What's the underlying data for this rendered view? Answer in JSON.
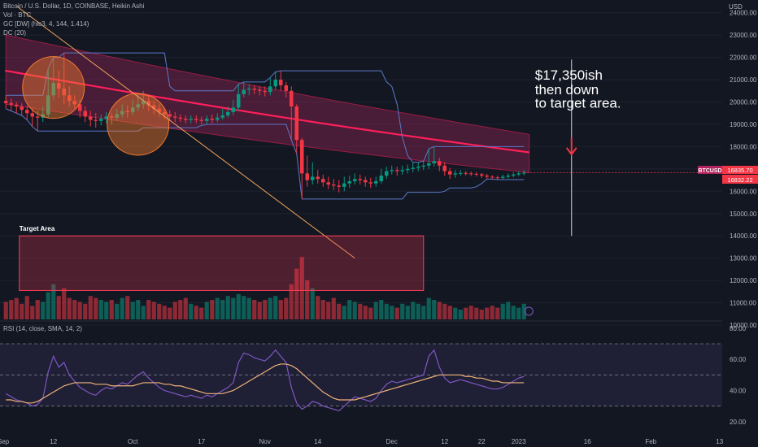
{
  "header": {
    "symbol_line": "Bitcoin / U.S. Dollar, 1D, COINBASE, Heikin Ashi",
    "vol_line": "Vol · BTC",
    "gc_line": "GC [DW] (hlc3, 4, 144, 1.414)",
    "dc_line": "DC (20)",
    "rsi_line": "RSI (14, close, SMA, 14, 2)",
    "currency": "USD"
  },
  "annotations": {
    "target_area_label": "Target Area",
    "note_line1": "$17,350ish",
    "note_line2": "then down",
    "note_line3": "to target area."
  },
  "price_tags": {
    "symbol": "BTCUSD",
    "last_price": "16835.70",
    "second_price": "16832.22"
  },
  "colors": {
    "background": "#131722",
    "up": "#089981",
    "down": "#f23645",
    "channel_fill": "#b0245e",
    "mid_line": "#ff1f5a",
    "donchian": "#5b79c8",
    "trendline": "#f0a45a",
    "target_box": "#ff3d57",
    "rsi_line": "#7e57c2",
    "rsi_sma": "#f0b27a",
    "circle_fill": "#f57c2f"
  },
  "chart_data": {
    "type": "candlestick",
    "title": "Bitcoin / U.S. Dollar, 1D, COINBASE, Heikin Ashi",
    "price_axis": {
      "ticks": [
        "24000.00",
        "23000.00",
        "22000.00",
        "21000.00",
        "20000.00",
        "19000.00",
        "18000.00",
        "17000.00",
        "16000.00",
        "15000.00",
        "14000.00",
        "13000.00",
        "12000.00",
        "11000.00",
        "10000.00"
      ],
      "range": [
        10000,
        24500
      ]
    },
    "time_axis": {
      "ticks": [
        "Sep",
        "12",
        "Oct",
        "17",
        "Nov",
        "14",
        "Dec",
        "12",
        "22",
        "2023",
        "16",
        "Feb",
        "13"
      ]
    },
    "rsi_axis": {
      "ticks": [
        "80.00",
        "60.00",
        "40.00",
        "20.00"
      ],
      "range": [
        10,
        80
      ],
      "bands": [
        70,
        50,
        30
      ]
    },
    "candles": [
      {
        "o": 20050,
        "c": 19950,
        "h": 20300,
        "l": 19700
      },
      {
        "o": 19950,
        "c": 19880,
        "h": 20150,
        "l": 19600
      },
      {
        "o": 19880,
        "c": 19800,
        "h": 20000,
        "l": 19500
      },
      {
        "o": 19800,
        "c": 19650,
        "h": 19950,
        "l": 19400
      },
      {
        "o": 19650,
        "c": 19500,
        "h": 19850,
        "l": 19200
      },
      {
        "o": 19500,
        "c": 19350,
        "h": 19700,
        "l": 18900
      },
      {
        "o": 19350,
        "c": 19300,
        "h": 19600,
        "l": 18700
      },
      {
        "o": 19300,
        "c": 19450,
        "h": 19800,
        "l": 19100
      },
      {
        "o": 19450,
        "c": 20300,
        "h": 21500,
        "l": 19300
      },
      {
        "o": 20300,
        "c": 20850,
        "h": 22000,
        "l": 20100
      },
      {
        "o": 20850,
        "c": 20600,
        "h": 21400,
        "l": 20200
      },
      {
        "o": 20600,
        "c": 20300,
        "h": 22200,
        "l": 19900
      },
      {
        "o": 20300,
        "c": 20050,
        "h": 20700,
        "l": 19800
      },
      {
        "o": 20050,
        "c": 19900,
        "h": 20300,
        "l": 19700
      },
      {
        "o": 19900,
        "c": 19600,
        "h": 20100,
        "l": 19300
      },
      {
        "o": 19600,
        "c": 19350,
        "h": 19800,
        "l": 19100
      },
      {
        "o": 19350,
        "c": 19200,
        "h": 19600,
        "l": 18900
      },
      {
        "o": 19200,
        "c": 19150,
        "h": 19500,
        "l": 18850
      },
      {
        "o": 19150,
        "c": 19250,
        "h": 19450,
        "l": 18950
      },
      {
        "o": 19250,
        "c": 19350,
        "h": 19550,
        "l": 19050
      },
      {
        "o": 19350,
        "c": 19300,
        "h": 19500,
        "l": 19000
      },
      {
        "o": 19300,
        "c": 19450,
        "h": 19700,
        "l": 19150
      },
      {
        "o": 19450,
        "c": 19600,
        "h": 19900,
        "l": 19300
      },
      {
        "o": 19600,
        "c": 19550,
        "h": 19850,
        "l": 19300
      },
      {
        "o": 19550,
        "c": 19750,
        "h": 20100,
        "l": 19400
      },
      {
        "o": 19750,
        "c": 19900,
        "h": 20400,
        "l": 19600
      },
      {
        "o": 19900,
        "c": 20050,
        "h": 20500,
        "l": 19700
      },
      {
        "o": 20050,
        "c": 19850,
        "h": 20300,
        "l": 19600
      },
      {
        "o": 19850,
        "c": 19700,
        "h": 20050,
        "l": 19450
      },
      {
        "o": 19700,
        "c": 19550,
        "h": 19900,
        "l": 19350
      },
      {
        "o": 19550,
        "c": 19450,
        "h": 19750,
        "l": 19250
      },
      {
        "o": 19450,
        "c": 19350,
        "h": 19650,
        "l": 19150
      },
      {
        "o": 19350,
        "c": 19300,
        "h": 19550,
        "l": 19100
      },
      {
        "o": 19300,
        "c": 19250,
        "h": 19450,
        "l": 19100
      },
      {
        "o": 19250,
        "c": 19200,
        "h": 19400,
        "l": 19050
      },
      {
        "o": 19200,
        "c": 19250,
        "h": 19400,
        "l": 19050
      },
      {
        "o": 19250,
        "c": 19200,
        "h": 19400,
        "l": 19050
      },
      {
        "o": 19200,
        "c": 19150,
        "h": 19350,
        "l": 19000
      },
      {
        "o": 19150,
        "c": 19250,
        "h": 19400,
        "l": 19000
      },
      {
        "o": 19250,
        "c": 19200,
        "h": 19450,
        "l": 19050
      },
      {
        "o": 19200,
        "c": 19300,
        "h": 19500,
        "l": 19100
      },
      {
        "o": 19300,
        "c": 19400,
        "h": 19700,
        "l": 19200
      },
      {
        "o": 19400,
        "c": 19550,
        "h": 19800,
        "l": 19300
      },
      {
        "o": 19550,
        "c": 19750,
        "h": 20100,
        "l": 19400
      },
      {
        "o": 19750,
        "c": 20350,
        "h": 20800,
        "l": 19600
      },
      {
        "o": 20350,
        "c": 20550,
        "h": 20900,
        "l": 20200
      },
      {
        "o": 20550,
        "c": 20600,
        "h": 20800,
        "l": 20300
      },
      {
        "o": 20600,
        "c": 20550,
        "h": 20750,
        "l": 20350
      },
      {
        "o": 20550,
        "c": 20500,
        "h": 20700,
        "l": 20300
      },
      {
        "o": 20500,
        "c": 20450,
        "h": 20700,
        "l": 20250
      },
      {
        "o": 20450,
        "c": 20700,
        "h": 21100,
        "l": 20300
      },
      {
        "o": 20700,
        "c": 21000,
        "h": 21350,
        "l": 20550
      },
      {
        "o": 21000,
        "c": 20750,
        "h": 21400,
        "l": 20500
      },
      {
        "o": 20750,
        "c": 20500,
        "h": 20900,
        "l": 20200
      },
      {
        "o": 20500,
        "c": 19800,
        "h": 20700,
        "l": 18300
      },
      {
        "o": 19800,
        "c": 18300,
        "h": 19900,
        "l": 17700
      },
      {
        "o": 18300,
        "c": 16800,
        "h": 18400,
        "l": 15650
      },
      {
        "o": 16800,
        "c": 16500,
        "h": 17600,
        "l": 16200
      },
      {
        "o": 16500,
        "c": 16650,
        "h": 17300,
        "l": 16300
      },
      {
        "o": 16650,
        "c": 16550,
        "h": 16950,
        "l": 16350
      },
      {
        "o": 16550,
        "c": 16400,
        "h": 16750,
        "l": 16200
      },
      {
        "o": 16400,
        "c": 16300,
        "h": 16650,
        "l": 16100
      },
      {
        "o": 16300,
        "c": 16250,
        "h": 16550,
        "l": 16050
      },
      {
        "o": 16250,
        "c": 16200,
        "h": 16500,
        "l": 15950
      },
      {
        "o": 16200,
        "c": 16350,
        "h": 16650,
        "l": 16000
      },
      {
        "o": 16350,
        "c": 16450,
        "h": 16700,
        "l": 16150
      },
      {
        "o": 16450,
        "c": 16550,
        "h": 16800,
        "l": 16300
      },
      {
        "o": 16550,
        "c": 16500,
        "h": 16750,
        "l": 16300
      },
      {
        "o": 16500,
        "c": 16400,
        "h": 16650,
        "l": 16200
      },
      {
        "o": 16400,
        "c": 16350,
        "h": 16600,
        "l": 16150
      },
      {
        "o": 16350,
        "c": 16450,
        "h": 16650,
        "l": 16200
      },
      {
        "o": 16450,
        "c": 16700,
        "h": 17000,
        "l": 16350
      },
      {
        "o": 16700,
        "c": 16900,
        "h": 17100,
        "l": 16550
      },
      {
        "o": 16900,
        "c": 16950,
        "h": 17150,
        "l": 16750
      },
      {
        "o": 16950,
        "c": 16900,
        "h": 17100,
        "l": 16700
      },
      {
        "o": 16900,
        "c": 16950,
        "h": 17150,
        "l": 16750
      },
      {
        "o": 16950,
        "c": 17000,
        "h": 17200,
        "l": 16800
      },
      {
        "o": 17000,
        "c": 17050,
        "h": 17300,
        "l": 16850
      },
      {
        "o": 17050,
        "c": 17100,
        "h": 17300,
        "l": 16900
      },
      {
        "o": 17100,
        "c": 17150,
        "h": 17350,
        "l": 16950
      },
      {
        "o": 17150,
        "c": 17250,
        "h": 17900,
        "l": 17000
      },
      {
        "o": 17250,
        "c": 17350,
        "h": 18000,
        "l": 17100
      },
      {
        "o": 17350,
        "c": 17150,
        "h": 17500,
        "l": 16900
      },
      {
        "o": 17150,
        "c": 16900,
        "h": 17300,
        "l": 16700
      },
      {
        "o": 16900,
        "c": 16750,
        "h": 17050,
        "l": 16550
      },
      {
        "o": 16750,
        "c": 16800,
        "h": 16950,
        "l": 16600
      },
      {
        "o": 16800,
        "c": 16820,
        "h": 16950,
        "l": 16700
      },
      {
        "o": 16820,
        "c": 16800,
        "h": 16900,
        "l": 16700
      },
      {
        "o": 16800,
        "c": 16780,
        "h": 16880,
        "l": 16680
      },
      {
        "o": 16780,
        "c": 16760,
        "h": 16860,
        "l": 16660
      },
      {
        "o": 16760,
        "c": 16700,
        "h": 16820,
        "l": 16600
      },
      {
        "o": 16700,
        "c": 16650,
        "h": 16780,
        "l": 16560
      },
      {
        "o": 16650,
        "c": 16620,
        "h": 16720,
        "l": 16540
      },
      {
        "o": 16620,
        "c": 16600,
        "h": 16700,
        "l": 16520
      },
      {
        "o": 16600,
        "c": 16650,
        "h": 16750,
        "l": 16530
      },
      {
        "o": 16650,
        "c": 16700,
        "h": 16800,
        "l": 16580
      },
      {
        "o": 16700,
        "c": 16750,
        "h": 16850,
        "l": 16620
      },
      {
        "o": 16750,
        "c": 16800,
        "h": 16900,
        "l": 16680
      },
      {
        "o": 16800,
        "c": 16830,
        "h": 16950,
        "l": 16720
      }
    ],
    "volume": [
      0.45,
      0.5,
      0.55,
      0.4,
      0.6,
      0.35,
      0.5,
      0.45,
      0.7,
      0.9,
      0.6,
      0.8,
      0.55,
      0.5,
      0.45,
      0.4,
      0.6,
      0.55,
      0.5,
      0.45,
      0.5,
      0.4,
      0.55,
      0.6,
      0.45,
      0.5,
      0.35,
      0.5,
      0.45,
      0.4,
      0.35,
      0.3,
      0.45,
      0.5,
      0.55,
      0.4,
      0.35,
      0.3,
      0.45,
      0.5,
      0.55,
      0.5,
      0.6,
      0.55,
      0.65,
      0.6,
      0.55,
      0.5,
      0.45,
      0.5,
      0.55,
      0.6,
      0.5,
      0.55,
      0.9,
      1.3,
      1.6,
      1.0,
      0.8,
      0.6,
      0.5,
      0.45,
      0.55,
      0.4,
      0.35,
      0.5,
      0.45,
      0.4,
      0.35,
      0.3,
      0.45,
      0.5,
      0.4,
      0.35,
      0.3,
      0.4,
      0.35,
      0.45,
      0.4,
      0.35,
      0.55,
      0.5,
      0.45,
      0.4,
      0.35,
      0.3,
      0.25,
      0.3,
      0.35,
      0.3,
      0.25,
      0.3,
      0.35,
      0.3,
      0.4,
      0.45,
      0.35,
      0.3,
      0.4
    ],
    "rsi": [
      38,
      36,
      34,
      33,
      32,
      30,
      31,
      35,
      52,
      62,
      55,
      58,
      50,
      46,
      42,
      40,
      38,
      37,
      40,
      42,
      41,
      43,
      45,
      44,
      47,
      50,
      52,
      48,
      45,
      42,
      40,
      39,
      38,
      37,
      36,
      37,
      36,
      35,
      37,
      36,
      38,
      40,
      42,
      45,
      58,
      64,
      63,
      61,
      60,
      59,
      62,
      66,
      62,
      58,
      42,
      32,
      28,
      30,
      33,
      32,
      30,
      29,
      28,
      27,
      30,
      33,
      36,
      35,
      34,
      33,
      35,
      40,
      44,
      46,
      45,
      46,
      47,
      48,
      49,
      50,
      62,
      66,
      55,
      48,
      45,
      46,
      47,
      46,
      45,
      44,
      43,
      42,
      41,
      41,
      42,
      44,
      46,
      48,
      49
    ],
    "rsi_sma": [
      34,
      34,
      33,
      33,
      32,
      32,
      33,
      35,
      37,
      39,
      41,
      43,
      44,
      45,
      45,
      45,
      45,
      44,
      44,
      44,
      43,
      43,
      43,
      43,
      43,
      44,
      45,
      45,
      45,
      45,
      44,
      44,
      43,
      43,
      42,
      41,
      40,
      39,
      38,
      38,
      38,
      38,
      39,
      40,
      42,
      44,
      46,
      48,
      50,
      52,
      54,
      56,
      57,
      57,
      56,
      54,
      51,
      48,
      45,
      42,
      39,
      37,
      35,
      34,
      34,
      34,
      34,
      35,
      36,
      37,
      38,
      39,
      40,
      41,
      42,
      43,
      44,
      45,
      46,
      47,
      48,
      49,
      50,
      50,
      50,
      50,
      50,
      49,
      49,
      48,
      48,
      47,
      46,
      46,
      45,
      45,
      45,
      45,
      45
    ],
    "trendline": {
      "from": {
        "bar": 2,
        "price": 24300
      },
      "to": {
        "bar": 66,
        "price": 13000
      }
    },
    "target_area": {
      "price_top": 14000,
      "price_bottom": 11550,
      "bar_from": 3,
      "bar_to": 79
    },
    "projection_line": {
      "price_top": 21900,
      "price_bottom": 14000,
      "bar": 107
    },
    "circles": [
      {
        "bar": 9,
        "price": 20650
      },
      {
        "bar": 25,
        "price": 19000
      }
    ]
  }
}
